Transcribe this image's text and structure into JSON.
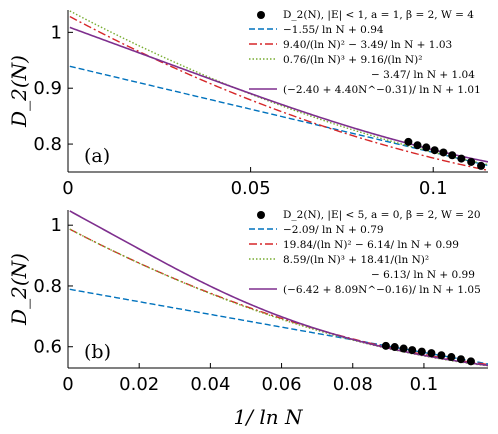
{
  "chart_data": [
    {
      "type": "line",
      "panel_label": "(a)",
      "ylabel": "D_2(N)",
      "xlabel": "",
      "xlim": [
        0,
        0.115
      ],
      "ylim": [
        0.75,
        1.04
      ],
      "xticks": [
        0,
        0.05,
        0.1
      ],
      "xtick_labels": [
        "0",
        "0.05",
        "0.1"
      ],
      "yticks": [
        0.8,
        0.9,
        1.0
      ],
      "ytick_labels": [
        "0.8",
        "0.9",
        "1"
      ],
      "legend_position": "top-right",
      "series": [
        {
          "name": "D_2(N), |E| < 1, a = 1, β = 2, W = 4",
          "style": "markers",
          "color": "#000000",
          "x": [
            0.0932,
            0.0957,
            0.0981,
            0.1004,
            0.1028,
            0.1052,
            0.1077,
            0.1104,
            0.1131
          ],
          "y": [
            0.804,
            0.798,
            0.794,
            0.789,
            0.785,
            0.78,
            0.774,
            0.768,
            0.761
          ]
        },
        {
          "name": "−1.55/ ln N + 0.94",
          "style": "dashed",
          "color": "#0072BD",
          "formula": {
            "kind": "inv",
            "a": -1.55,
            "c": 0.94
          }
        },
        {
          "name": "9.40/(ln N)² − 3.49/ ln N + 1.03",
          "style": "dashdot",
          "color": "#D62728",
          "formula": {
            "kind": "quad",
            "a2": 9.4,
            "a1": -3.49,
            "c": 1.03
          }
        },
        {
          "name": "0.76/(ln N)³ + 9.16/(ln N)² − 3.47/ ln N + 1.04",
          "name_line1": "0.76/(ln N)³ + 9.16/(ln N)²",
          "name_line2": "− 3.47/ ln N + 1.04",
          "style": "dotted",
          "color": "#77AC30",
          "formula": {
            "kind": "cubic",
            "a3": 0.76,
            "a2": 9.16,
            "a1": -3.47,
            "c": 1.04
          }
        },
        {
          "name": "(−2.40 + 4.40N^−0.31)/ ln N + 1.01",
          "style": "solid",
          "color": "#7E2F8E",
          "formula": {
            "kind": "power",
            "a": -2.4,
            "b": 4.4,
            "p": -0.31,
            "c": 1.01
          }
        }
      ]
    },
    {
      "type": "line",
      "panel_label": "(b)",
      "ylabel": "D_2(N)",
      "xlabel": "1/ ln N",
      "xlim": [
        0,
        0.118
      ],
      "ylim": [
        0.53,
        1.05
      ],
      "xticks": [
        0,
        0.02,
        0.04,
        0.06,
        0.08,
        0.1
      ],
      "xtick_labels": [
        "0",
        "0.02",
        "0.04",
        "0.06",
        "0.08",
        "0.1"
      ],
      "yticks": [
        0.6,
        0.8,
        1.0
      ],
      "ytick_labels": [
        "0.6",
        "0.8",
        "1"
      ],
      "legend_position": "top-right",
      "series": [
        {
          "name": "D_2(N), |E| < 5, a = 0, β = 2, W = 20",
          "style": "markers",
          "color": "#000000",
          "x": [
            0.0893,
            0.0918,
            0.0943,
            0.0967,
            0.0994,
            0.1021,
            0.1049,
            0.1077,
            0.1104,
            0.1132
          ],
          "y": [
            0.603,
            0.599,
            0.594,
            0.589,
            0.584,
            0.579,
            0.572,
            0.566,
            0.559,
            0.552
          ]
        },
        {
          "name": "−2.09/ ln N + 0.79",
          "style": "dashed",
          "color": "#0072BD",
          "formula": {
            "kind": "inv",
            "a": -2.09,
            "c": 0.79
          }
        },
        {
          "name": "19.84/(ln N)² − 6.14/ ln N + 0.99",
          "style": "dashdot",
          "color": "#D62728",
          "formula": {
            "kind": "quad",
            "a2": 19.84,
            "a1": -6.14,
            "c": 0.99
          }
        },
        {
          "name": "8.59/(ln N)³ + 18.41/(ln N)² − 6.13/ ln N + 0.99",
          "name_line1": "8.59/(ln N)³ + 18.41/(ln N)²",
          "name_line2": "− 6.13/ ln N + 0.99",
          "style": "dotted",
          "color": "#77AC30",
          "formula": {
            "kind": "cubic",
            "a3": 8.59,
            "a2": 18.41,
            "a1": -6.13,
            "c": 0.99
          }
        },
        {
          "name": "(−6.42 + 8.09N^−0.16)/ ln N + 1.05",
          "style": "solid",
          "color": "#7E2F8E",
          "formula": {
            "kind": "power",
            "a": -6.42,
            "b": 8.09,
            "p": -0.16,
            "c": 1.05
          }
        }
      ]
    }
  ]
}
